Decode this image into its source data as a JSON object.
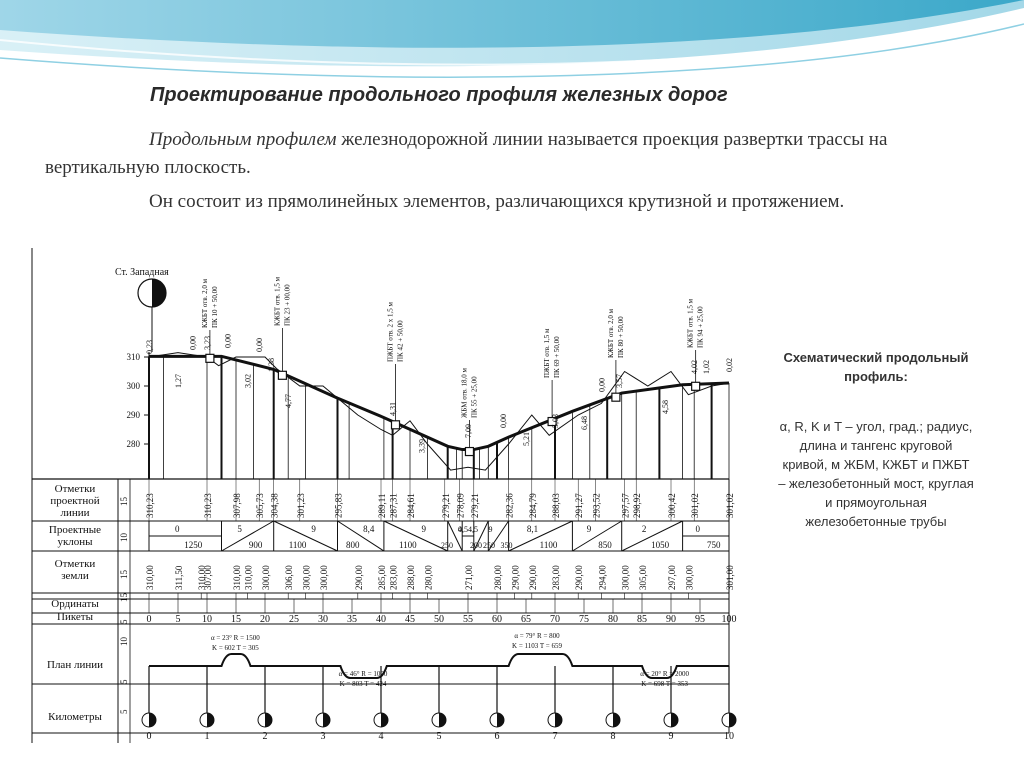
{
  "slide": {
    "title": "Проектирование продольного профиля железных дорог",
    "para1_italic": "Продольным профилем",
    "para1_rest": " железнодорожной линии называется проекция развертки трассы на вертикальную плоскость.",
    "para2": "Он состоит из прямолинейных элементов, различающихся крутизной и протяжением."
  },
  "sidebar": {
    "title": "Схематический продольный профиль:",
    "body": "α, R, K и T – угол, град.; радиус, длина и тангенс круговой кривой, м ЖБМ, КЖБТ и ПЖБТ – железобетонный мост, круглая и прямоугольная железобетонные трубы"
  },
  "diagram": {
    "station_label": "Ст. Западная",
    "elevation_ticks": [
      "310",
      "300",
      "290",
      "280"
    ],
    "row_labels": {
      "design_marks": [
        "Отметки",
        "проектной",
        "линии"
      ],
      "gradients": [
        "Проектные",
        "уклоны"
      ],
      "ground": [
        "Отметки",
        "земли"
      ],
      "ordinates": "Ординаты",
      "pickets": "Пикеты",
      "plan": "План линии",
      "km": "Километры"
    },
    "row_heights": [
      "15",
      "10",
      "15",
      "15",
      "5",
      "10",
      "5",
      "5"
    ],
    "design_marks": [
      "310,23",
      "310,23",
      "307,98",
      "305,73",
      "304,38",
      "301,23",
      "295,83",
      "289,11",
      "287,31",
      "284,61",
      "279,21",
      "278,09",
      "279,21",
      "282,36",
      "284,79",
      "288,03",
      "291,27",
      "293,52",
      "297,57",
      "298,92",
      "300,42",
      "301,02",
      "301,02"
    ],
    "ground_marks": [
      "310,00",
      "311,50",
      "310,00",
      "307,00",
      "310,00",
      "310,00",
      "300,00",
      "306,00",
      "300,00",
      "300,00",
      "290,00",
      "285,00",
      "283,00",
      "288,00",
      "280,00",
      "271,00",
      "280,00",
      "290,00",
      "290,00",
      "283,00",
      "290,00",
      "294,00",
      "300,00",
      "305,00",
      "297,00",
      "300,00",
      "301,00"
    ],
    "gradients": [
      {
        "slope": "0",
        "length": "1250"
      },
      {
        "slope": "5",
        "length": "900"
      },
      {
        "slope": "9",
        "length": "1100"
      },
      {
        "slope": "8,4",
        "length": "800"
      },
      {
        "slope": "9",
        "length": "1100"
      },
      {
        "slope": "4,5",
        "length": "250"
      },
      {
        "slope": "0",
        "length": "200"
      },
      {
        "slope": "4,5",
        "length": "250"
      },
      {
        "slope": "9",
        "length": "350"
      },
      {
        "slope": "8,1",
        "length": "1100"
      },
      {
        "slope": "9",
        "length": "850"
      },
      {
        "slope": "2",
        "length": "1050"
      },
      {
        "slope": "0",
        "length": "750"
      }
    ],
    "pickets": [
      "0",
      "5",
      "10",
      "15",
      "20",
      "25",
      "30",
      "35",
      "40",
      "45",
      "50",
      "55",
      "60",
      "65",
      "70",
      "75",
      "80",
      "85",
      "90",
      "95",
      "100"
    ],
    "km_labels": [
      "0",
      "1",
      "2",
      "3",
      "4",
      "5",
      "6",
      "7",
      "8",
      "9",
      "10"
    ],
    "structures": [
      {
        "line1": "КЖБТ отв. 2,0 м",
        "line2": "ПК 10 + 50,00"
      },
      {
        "line1": "КЖБТ отв. 1,5 м",
        "line2": "ПК 23 + 00,00"
      },
      {
        "line1": "ПЖБТ отв. 2 х 1,5 м",
        "line2": "ПК 42 + 50,00"
      },
      {
        "line1": "ЖБМ отв. 18,0 м",
        "line2": "ПК 55 + 25,00"
      },
      {
        "line1": "ПЖБТ отв. 1,5 м",
        "line2": "ПК 69 + 50,00"
      },
      {
        "line1": "КЖБТ отв. 2,0 м",
        "line2": "ПК 80 + 50,00"
      },
      {
        "line1": "КЖБТ отв. 1,5 м",
        "line2": "ПК 94 + 25,00"
      }
    ],
    "work_marks": [
      "0,23",
      "1,27",
      "0,00",
      "3,23",
      "0,00",
      "3,02",
      "0,00",
      "1,38",
      "4,77",
      "4,31",
      "3,39",
      "7,09",
      "0,00",
      "5,21",
      "5,03",
      "6,48",
      "0,00",
      "3,57",
      "4,58",
      "4,02",
      "1,02",
      "0,02"
    ],
    "curves": [
      {
        "a": "α = 23°",
        "r": "R = 1500",
        "k": "K = 602",
        "t": "T = 305"
      },
      {
        "a": "α = 46°",
        "r": "R = 1000",
        "k": "K = 803",
        "t": "T = 424"
      },
      {
        "a": "α = 79°",
        "r": "R = 800",
        "k": "K = 1103",
        "t": "T = 659"
      },
      {
        "a": "α = 20°",
        "r": "R = 2000",
        "k": "K = 698",
        "t": "T = 353"
      }
    ]
  }
}
